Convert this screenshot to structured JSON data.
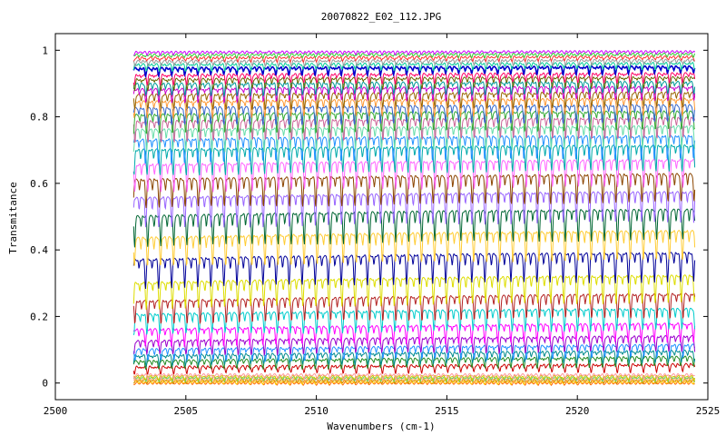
{
  "chart_data": {
    "type": "line",
    "title": "20070822_E02_112.JPG",
    "xlabel": "Wavenumbers (cm-1)",
    "ylabel": "Transmitance",
    "xlim": [
      2500,
      2525
    ],
    "ylim": [
      -0.05,
      1.05
    ],
    "x_ticks": [
      2500,
      2505,
      2510,
      2515,
      2520,
      2525
    ],
    "y_ticks": [
      0,
      0.2,
      0.4,
      0.6,
      0.8,
      1
    ],
    "x_tick_labels": [
      "2500",
      "2505",
      "2510",
      "2515",
      "2520",
      "2525"
    ],
    "y_tick_labels": [
      "0",
      "0.2",
      "0.4",
      "0.6",
      "0.8",
      "1"
    ],
    "data_x_range": [
      2503.0,
      2524.5
    ],
    "absorption_line_spacing_cm1": 0.5,
    "grid": false,
    "legend": "none",
    "series": [
      {
        "color": "#ff6600",
        "values": [
          0.0,
          0.0,
          0.0,
          0.0,
          0.0
        ]
      },
      {
        "color": "#ffcc00",
        "values": [
          0.004,
          0.004,
          0.004,
          0.004,
          0.004
        ]
      },
      {
        "color": "#cc8800",
        "values": [
          0.008,
          0.008,
          0.008,
          0.008,
          0.008
        ]
      },
      {
        "color": "#ffaa55",
        "values": [
          0.012,
          0.012,
          0.012,
          0.012,
          0.012
        ]
      },
      {
        "color": "#66cc66",
        "values": [
          0.016,
          0.016,
          0.016,
          0.016,
          0.016
        ]
      },
      {
        "color": "#cccc00",
        "values": [
          0.02,
          0.02,
          0.02,
          0.02,
          0.02
        ]
      },
      {
        "color": "#ff9999",
        "values": [
          0.025,
          0.025,
          0.025,
          0.025,
          0.025
        ]
      },
      {
        "color": "#cc0000",
        "values": [
          0.048,
          0.05,
          0.052,
          0.054,
          0.056
        ]
      },
      {
        "color": "#228b22",
        "values": [
          0.065,
          0.07,
          0.072,
          0.075,
          0.078
        ]
      },
      {
        "color": "#008b8b",
        "values": [
          0.082,
          0.086,
          0.09,
          0.093,
          0.096
        ]
      },
      {
        "color": "#1e90ff",
        "values": [
          0.1,
          0.104,
          0.108,
          0.111,
          0.114
        ]
      },
      {
        "color": "#9900cc",
        "values": [
          0.125,
          0.13,
          0.134,
          0.137,
          0.14
        ]
      },
      {
        "color": "#ff00ff",
        "values": [
          0.16,
          0.166,
          0.171,
          0.175,
          0.178
        ]
      },
      {
        "color": "#00cccc",
        "values": [
          0.205,
          0.211,
          0.216,
          0.22,
          0.222
        ]
      },
      {
        "color": "#b22222",
        "values": [
          0.245,
          0.252,
          0.258,
          0.263,
          0.267
        ]
      },
      {
        "color": "#dddd00",
        "values": [
          0.3,
          0.308,
          0.314,
          0.319,
          0.322
        ]
      },
      {
        "color": "#000099",
        "values": [
          0.37,
          0.378,
          0.384,
          0.388,
          0.39
        ]
      },
      {
        "color": "#ffcc33",
        "values": [
          0.435,
          0.443,
          0.449,
          0.453,
          0.456
        ]
      },
      {
        "color": "#006633",
        "values": [
          0.5,
          0.508,
          0.514,
          0.518,
          0.52
        ]
      },
      {
        "color": "#9966ff",
        "values": [
          0.555,
          0.562,
          0.567,
          0.571,
          0.573
        ]
      },
      {
        "color": "#8b4500",
        "values": [
          0.61,
          0.616,
          0.62,
          0.624,
          0.627
        ]
      },
      {
        "color": "#ff66ff",
        "values": [
          0.655,
          0.66,
          0.664,
          0.667,
          0.67
        ]
      },
      {
        "color": "#00aaaa",
        "values": [
          0.7,
          0.705,
          0.708,
          0.711,
          0.713
        ]
      },
      {
        "color": "#1e90ff",
        "values": [
          0.73,
          0.735,
          0.738,
          0.74,
          0.742
        ]
      },
      {
        "color": "#66ddaa",
        "values": [
          0.76,
          0.764,
          0.767,
          0.769,
          0.771
        ]
      },
      {
        "color": "#cc6699",
        "values": [
          0.785,
          0.789,
          0.792,
          0.794,
          0.796
        ]
      },
      {
        "color": "#33aa33",
        "values": [
          0.805,
          0.809,
          0.812,
          0.814,
          0.815
        ]
      },
      {
        "color": "#3366cc",
        "values": [
          0.825,
          0.829,
          0.831,
          0.833,
          0.834
        ]
      },
      {
        "color": "#ff9933",
        "values": [
          0.845,
          0.848,
          0.85,
          0.852,
          0.853
        ]
      },
      {
        "color": "#996600",
        "values": [
          0.865,
          0.868,
          0.87,
          0.871,
          0.872
        ]
      },
      {
        "color": "#cc00cc",
        "values": [
          0.882,
          0.885,
          0.887,
          0.888,
          0.889
        ]
      },
      {
        "color": "#009999",
        "values": [
          0.898,
          0.9,
          0.902,
          0.903,
          0.904
        ]
      },
      {
        "color": "#666600",
        "values": [
          0.912,
          0.914,
          0.916,
          0.917,
          0.918
        ]
      },
      {
        "color": "#ff0066",
        "values": [
          0.925,
          0.927,
          0.928,
          0.929,
          0.93
        ]
      },
      {
        "color": "#0000cc",
        "values": [
          0.945,
          0.947,
          0.948,
          0.949,
          0.95
        ]
      },
      {
        "color": "#00cc99",
        "values": [
          0.957,
          0.958,
          0.959,
          0.96,
          0.961
        ]
      },
      {
        "color": "#999999",
        "values": [
          0.967,
          0.968,
          0.969,
          0.97,
          0.97
        ]
      },
      {
        "color": "#ff3333",
        "values": [
          0.977,
          0.978,
          0.979,
          0.98,
          0.98
        ]
      },
      {
        "color": "#33cc33",
        "values": [
          0.986,
          0.987,
          0.988,
          0.988,
          0.989
        ]
      },
      {
        "color": "#cc00ff",
        "values": [
          0.994,
          0.995,
          0.995,
          0.996,
          0.996
        ]
      }
    ]
  }
}
